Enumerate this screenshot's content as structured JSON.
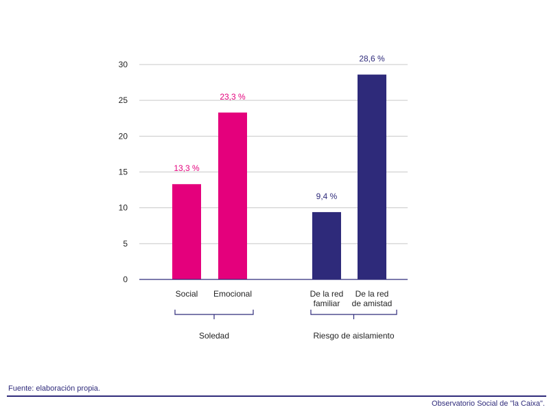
{
  "chart_data": {
    "type": "bar",
    "categories": [
      {
        "lines": [
          "Social"
        ],
        "value": 13.3,
        "label": "13,3 %",
        "group": 0
      },
      {
        "lines": [
          "Emocional"
        ],
        "value": 23.3,
        "label": "23,3 %",
        "group": 0
      },
      {
        "lines": [
          "De la red",
          "familiar"
        ],
        "value": 9.4,
        "label": "9,4 %",
        "group": 1
      },
      {
        "lines": [
          "De la red",
          "de amistad"
        ],
        "value": 28.6,
        "label": "28,6 %",
        "group": 1
      }
    ],
    "groups": [
      {
        "name": "Soledad",
        "color": "#e4007c"
      },
      {
        "name": "Riesgo de aislamiento",
        "color": "#2e2a7a"
      }
    ],
    "ylim": [
      0,
      30
    ],
    "yticks": [
      "0",
      "5",
      "10",
      "15",
      "20",
      "25",
      "30"
    ],
    "ytick_values": [
      0,
      5,
      10,
      15,
      20,
      25,
      30
    ],
    "grid": true
  },
  "footer": {
    "source": "Fuente: elaboración propia.",
    "brand": "Observatorio Social de \"la Caixa\"."
  }
}
